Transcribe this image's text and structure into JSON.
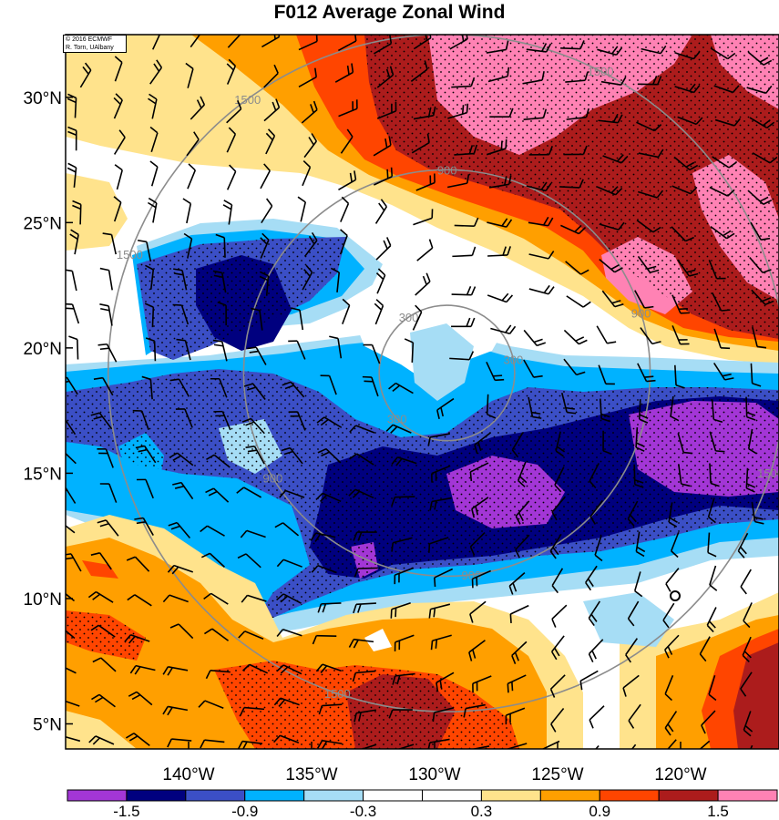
{
  "title": "F012 Average Zonal Wind",
  "credit": {
    "line1": "© 2016 ECMWF",
    "line2": "R. Torn, UAlbany"
  },
  "map": {
    "lat_range": [
      4.0,
      32.5
    ],
    "lon_range": [
      -145.0,
      -116.0
    ],
    "lat_ticks": [
      {
        "value": 30,
        "label": "30°N"
      },
      {
        "value": 25,
        "label": "25°N"
      },
      {
        "value": 20,
        "label": "20°N"
      },
      {
        "value": 15,
        "label": "15°N"
      },
      {
        "value": 10,
        "label": "10°N"
      },
      {
        "value": 5,
        "label": "5°N"
      }
    ],
    "lon_ticks": [
      {
        "value": -140,
        "label": "140°W"
      },
      {
        "value": -135,
        "label": "135°W"
      },
      {
        "value": -130,
        "label": "130°W"
      },
      {
        "value": -125,
        "label": "125°W"
      },
      {
        "value": -120,
        "label": "120°W"
      }
    ],
    "storm_center": {
      "lon": -129.5,
      "lat": 19.0
    },
    "range_rings": [
      {
        "radius": 300,
        "label": "300"
      },
      {
        "radius": 900,
        "label": "900"
      },
      {
        "radius": 1500,
        "label": "1500"
      }
    ]
  },
  "colorbar": {
    "colors": [
      "#a336d6",
      "#00007f",
      "#3b4fc6",
      "#00b2ff",
      "#a6ddf5",
      "#ffffff",
      "#ffffff",
      "#ffe38c",
      "#ff9f00",
      "#ff4500",
      "#ac1c1c",
      "#ff82b4"
    ],
    "labels": [
      "-1.5",
      "-0.9",
      "-0.3",
      "0.3",
      "0.9",
      "1.5"
    ]
  }
}
